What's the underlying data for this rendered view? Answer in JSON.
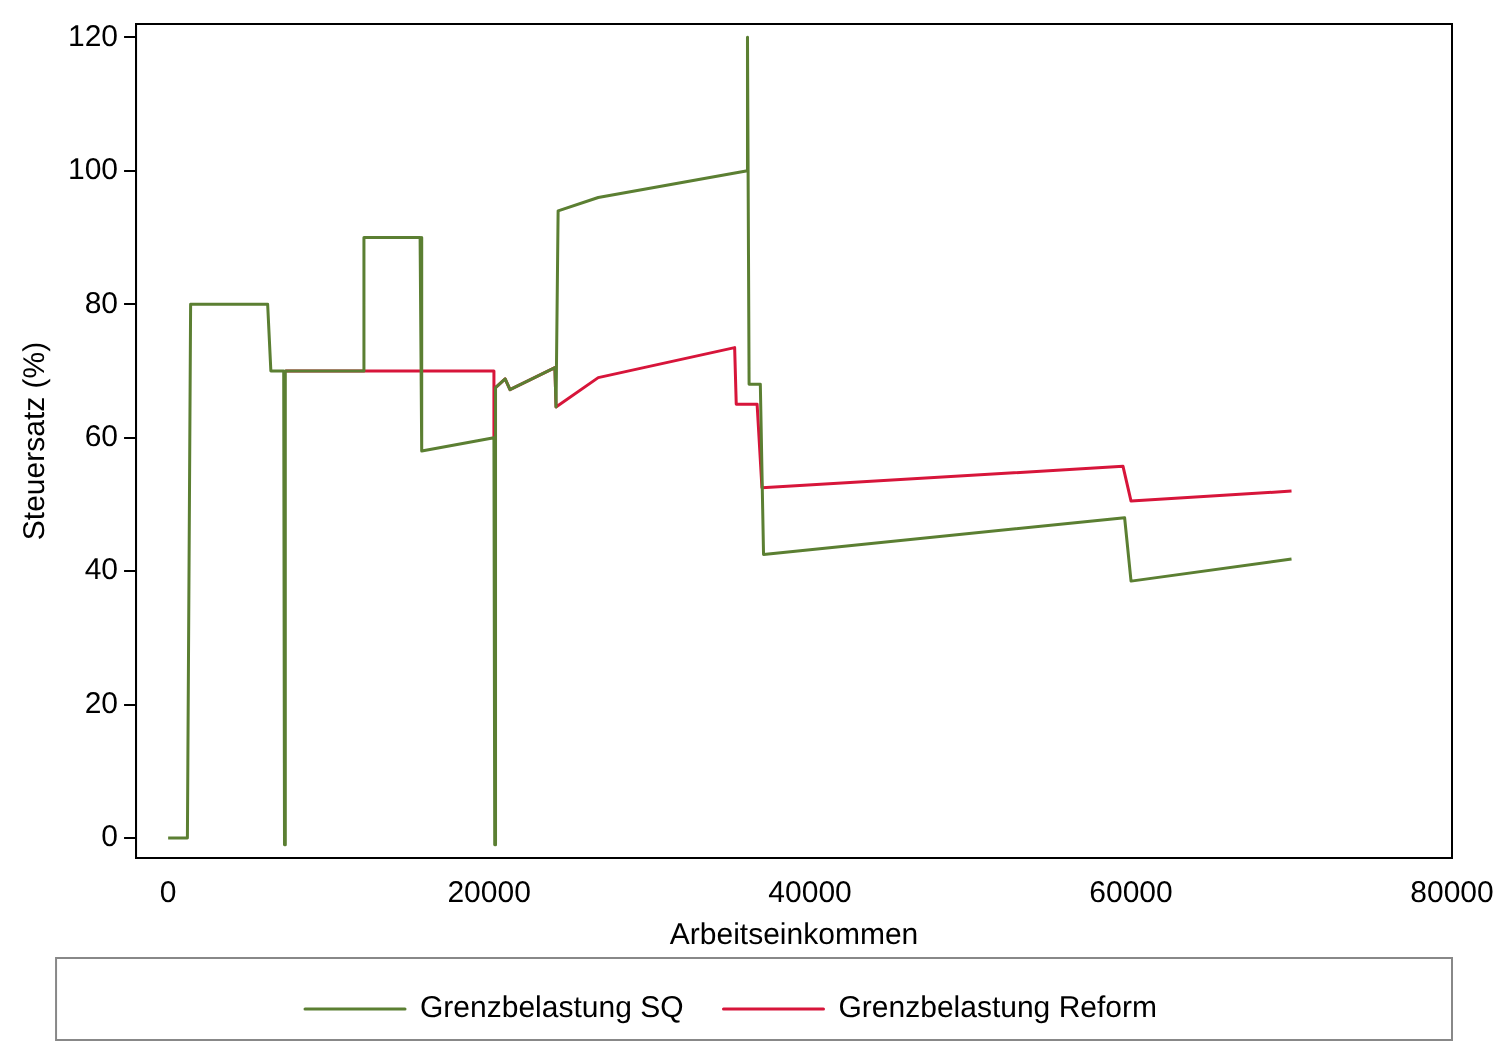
{
  "chart_data": {
    "type": "line",
    "xlabel": "Arbeitseinkommen",
    "ylabel": "Steuersatz (%)",
    "xlim": [
      -2000,
      80000
    ],
    "ylim": [
      -3,
      122
    ],
    "xticks": [
      0,
      20000,
      40000,
      60000,
      80000
    ],
    "yticks": [
      0,
      20,
      40,
      60,
      80,
      100,
      120
    ],
    "grid": false,
    "legend": "bottom",
    "marker": "none",
    "line_style": "solid",
    "series": [
      {
        "name": "Grenzbelastung SQ",
        "color": "#5b7f32",
        "x": [
          0,
          1200,
          1400,
          6200,
          6400,
          7200,
          7250,
          7300,
          12200,
          12200,
          15700,
          15800,
          20300,
          20350,
          20400,
          21000,
          21300,
          24100,
          24170,
          24300,
          26800,
          36100,
          36100,
          36200,
          36900,
          37100,
          59600,
          60000,
          70000
        ],
        "values": [
          0,
          0,
          80,
          80,
          70,
          70,
          -1,
          70,
          70,
          90,
          90,
          58,
          60,
          -1,
          67.5,
          68.8,
          67.2,
          70.5,
          64.6,
          94,
          96,
          100,
          120,
          68,
          68,
          42.5,
          48,
          38.5,
          41.8
        ]
      },
      {
        "name": "Grenzbelastung Reform",
        "color": "#d7153a",
        "x": [
          7300,
          12200,
          20300,
          20300,
          20400,
          21000,
          21300,
          24100,
          24170,
          26800,
          35300,
          35400,
          36700,
          37000,
          59500,
          60000,
          70000
        ],
        "values": [
          70,
          70,
          70,
          60,
          67.5,
          68.8,
          67.2,
          70.5,
          64.6,
          69,
          73.5,
          65,
          65,
          52.5,
          55.7,
          50.5,
          52
        ]
      }
    ]
  }
}
